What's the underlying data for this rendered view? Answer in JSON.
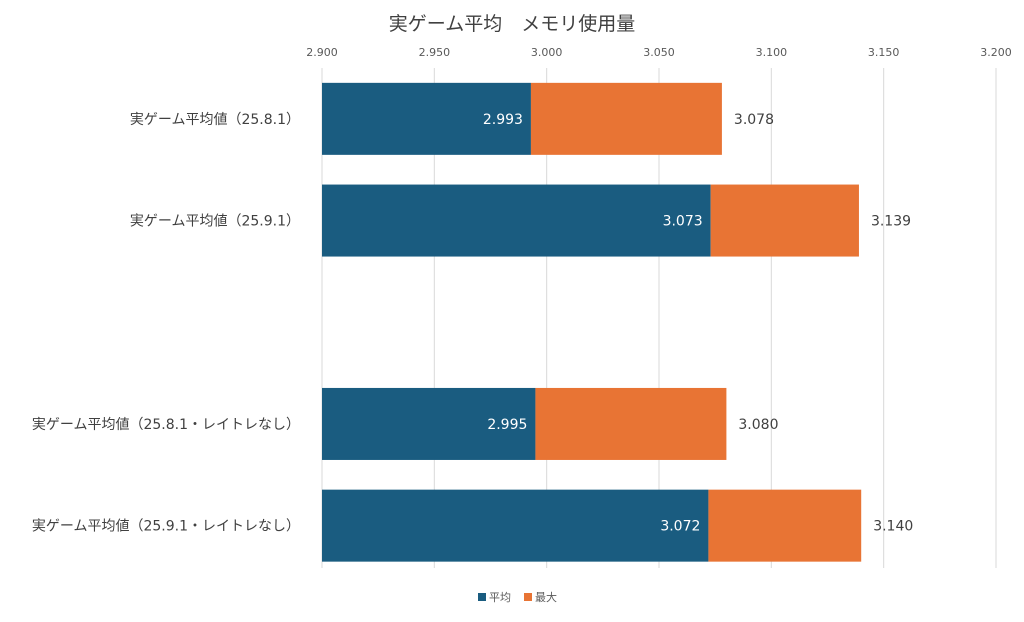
{
  "chart_data": {
    "type": "bar",
    "orientation": "horizontal",
    "stacked": false,
    "title": "実ゲーム平均　メモリ使用量",
    "categories": [
      "実ゲーム平均値（25.8.1）",
      "実ゲーム平均値（25.9.1）",
      "",
      "実ゲーム平均値（25.8.1・レイトレなし）",
      "実ゲーム平均値（25.9.1・レイトレなし）"
    ],
    "series": [
      {
        "name": "平均",
        "color": "#1a5c80",
        "values": [
          2.993,
          3.073,
          null,
          2.995,
          3.072
        ],
        "labels": [
          "2.993",
          "3.073",
          "",
          "2.995",
          "3.072"
        ]
      },
      {
        "name": "最大",
        "color": "#e87434",
        "values": [
          3.078,
          3.139,
          null,
          3.08,
          3.14
        ],
        "labels": [
          "3.078",
          "3.139",
          "",
          "3.080",
          "3.140"
        ]
      }
    ],
    "xlim": [
      2.9,
      3.2
    ],
    "xticks": [
      "2.900",
      "2.950",
      "3.000",
      "3.050",
      "3.100",
      "3.150",
      "3.200"
    ],
    "grid": true,
    "legend_position": "bottom"
  }
}
